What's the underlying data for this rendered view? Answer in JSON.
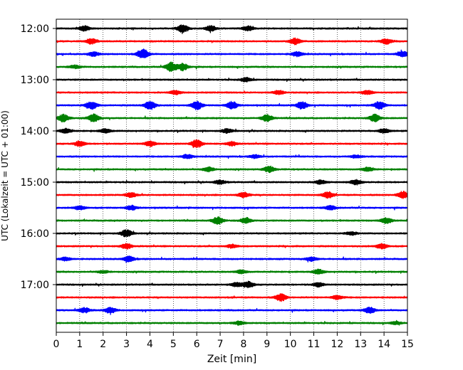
{
  "chart_data": {
    "type": "line",
    "title": "",
    "xlabel": "Zeit  [min]",
    "ylabel": "UTC (Lokalzeit = UTC + 01:00)",
    "xlim": [
      0,
      15
    ],
    "x_ticks": [
      0,
      1,
      2,
      3,
      4,
      5,
      6,
      7,
      8,
      9,
      10,
      11,
      12,
      13,
      14,
      15
    ],
    "y_ticks": [
      "12:00",
      "13:00",
      "14:00",
      "15:00",
      "16:00",
      "17:00"
    ],
    "grid": "vertical dotted lines at each minute",
    "legend": "none",
    "trace_interval_minutes": 15,
    "trace_colors": [
      "#000000",
      "#ff0000",
      "#0000ff",
      "#008000"
    ],
    "traces": [
      {
        "start": "12:00",
        "color": "#000000",
        "events": [
          [
            1.2,
            0.35
          ],
          [
            5.4,
            0.6
          ],
          [
            6.6,
            0.4
          ],
          [
            8.2,
            0.35
          ]
        ]
      },
      {
        "start": "12:15",
        "color": "#ff0000",
        "events": [
          [
            1.5,
            0.4
          ],
          [
            10.2,
            0.45
          ],
          [
            14.1,
            0.4
          ]
        ]
      },
      {
        "start": "12:30",
        "color": "#0000ff",
        "events": [
          [
            3.7,
            0.75
          ],
          [
            1.6,
            0.3
          ],
          [
            10.3,
            0.35
          ],
          [
            14.8,
            0.4
          ]
        ]
      },
      {
        "start": "12:45",
        "color": "#008000",
        "events": [
          [
            4.9,
            0.7
          ],
          [
            5.4,
            0.55
          ],
          [
            0.8,
            0.25
          ]
        ]
      },
      {
        "start": "13:00",
        "color": "#000000",
        "events": [
          [
            8.1,
            0.3
          ]
        ]
      },
      {
        "start": "13:15",
        "color": "#ff0000",
        "events": [
          [
            5.1,
            0.3
          ],
          [
            9.5,
            0.3
          ],
          [
            13.3,
            0.3
          ]
        ]
      },
      {
        "start": "13:30",
        "color": "#0000ff",
        "events": [
          [
            1.5,
            0.6
          ],
          [
            4.0,
            0.7
          ],
          [
            6.0,
            0.65
          ],
          [
            7.5,
            0.6
          ],
          [
            10.5,
            0.55
          ],
          [
            13.8,
            0.6
          ]
        ]
      },
      {
        "start": "13:45",
        "color": "#008000",
        "events": [
          [
            0.3,
            0.55
          ],
          [
            1.6,
            0.6
          ],
          [
            9.0,
            0.55
          ],
          [
            13.6,
            0.55
          ]
        ]
      },
      {
        "start": "14:00",
        "color": "#000000",
        "events": [
          [
            0.4,
            0.35
          ],
          [
            2.1,
            0.3
          ],
          [
            7.3,
            0.3
          ],
          [
            14.0,
            0.3
          ]
        ]
      },
      {
        "start": "14:15",
        "color": "#ff0000",
        "events": [
          [
            1.0,
            0.4
          ],
          [
            6.0,
            0.65
          ],
          [
            4.0,
            0.4
          ],
          [
            7.5,
            0.3
          ]
        ]
      },
      {
        "start": "14:30",
        "color": "#0000ff",
        "events": [
          [
            5.6,
            0.3
          ],
          [
            8.5,
            0.25
          ],
          [
            12.8,
            0.2
          ]
        ]
      },
      {
        "start": "14:45",
        "color": "#008000",
        "events": [
          [
            6.5,
            0.35
          ],
          [
            9.1,
            0.45
          ],
          [
            13.3,
            0.3
          ]
        ]
      },
      {
        "start": "15:00",
        "color": "#000000",
        "events": [
          [
            7.0,
            0.3
          ],
          [
            11.3,
            0.3
          ],
          [
            12.8,
            0.35
          ]
        ]
      },
      {
        "start": "15:15",
        "color": "#ff0000",
        "events": [
          [
            3.2,
            0.35
          ],
          [
            8.0,
            0.4
          ],
          [
            11.6,
            0.45
          ],
          [
            14.8,
            0.55
          ]
        ]
      },
      {
        "start": "15:30",
        "color": "#0000ff",
        "events": [
          [
            3.2,
            0.35
          ],
          [
            1.0,
            0.3
          ],
          [
            11.7,
            0.3
          ]
        ]
      },
      {
        "start": "15:45",
        "color": "#008000",
        "events": [
          [
            6.9,
            0.55
          ],
          [
            8.1,
            0.4
          ],
          [
            14.1,
            0.45
          ]
        ]
      },
      {
        "start": "16:00",
        "color": "#000000",
        "events": [
          [
            3.0,
            0.55
          ],
          [
            12.6,
            0.25
          ]
        ]
      },
      {
        "start": "16:15",
        "color": "#ff0000",
        "events": [
          [
            3.0,
            0.4
          ],
          [
            13.9,
            0.4
          ],
          [
            7.5,
            0.25
          ]
        ]
      },
      {
        "start": "16:30",
        "color": "#0000ff",
        "events": [
          [
            3.1,
            0.4
          ],
          [
            10.9,
            0.3
          ],
          [
            0.4,
            0.25
          ]
        ]
      },
      {
        "start": "16:45",
        "color": "#008000",
        "events": [
          [
            11.2,
            0.35
          ],
          [
            7.9,
            0.25
          ],
          [
            2.0,
            0.2
          ]
        ]
      },
      {
        "start": "17:00",
        "color": "#000000",
        "events": [
          [
            8.2,
            0.45
          ],
          [
            7.7,
            0.3
          ],
          [
            11.2,
            0.3
          ]
        ]
      },
      {
        "start": "17:15",
        "color": "#ff0000",
        "events": [
          [
            9.6,
            0.55
          ],
          [
            12.0,
            0.3
          ]
        ]
      },
      {
        "start": "17:30",
        "color": "#0000ff",
        "events": [
          [
            2.3,
            0.45
          ],
          [
            1.2,
            0.35
          ],
          [
            13.4,
            0.45
          ]
        ]
      },
      {
        "start": "17:45",
        "color": "#008000",
        "events": [
          [
            7.8,
            0.25
          ],
          [
            14.5,
            0.2
          ]
        ]
      }
    ]
  }
}
